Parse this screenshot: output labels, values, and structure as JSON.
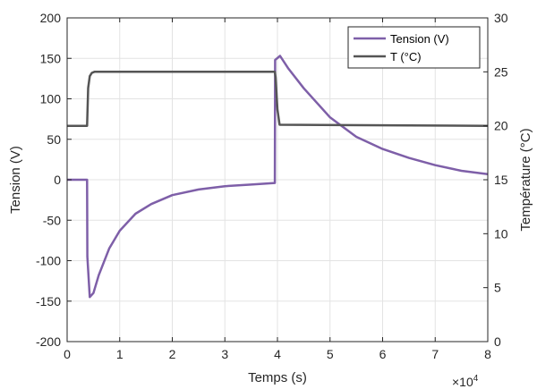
{
  "chart_data": {
    "type": "line",
    "xlabel": "Temps (s)",
    "x_exponent_label": "×10",
    "x_exponent_power": "4",
    "x_tick_multiplier": 10000,
    "xlim": [
      0,
      80000
    ],
    "x_ticks": [
      "0",
      "1",
      "2",
      "3",
      "4",
      "5",
      "6",
      "7",
      "8"
    ],
    "ylabel_left": "Tension (V)",
    "ylim_left": [
      -200,
      200
    ],
    "y_ticks_left": [
      "200",
      "150",
      "100",
      "50",
      "0",
      "-50",
      "-100",
      "-150",
      "-200"
    ],
    "ylabel_right": "Température (°C)",
    "ylim_right": [
      0,
      30
    ],
    "y_ticks_right": [
      "30",
      "25",
      "20",
      "15",
      "10",
      "5",
      "0"
    ],
    "grid": true,
    "legend_position": "top-right",
    "series": [
      {
        "name": "Tension (V)",
        "axis": "left",
        "color": "#7e5fa8",
        "x": [
          0,
          3800,
          3850,
          4300,
          5000,
          6000,
          8000,
          10000,
          13000,
          16000,
          20000,
          25000,
          30000,
          35000,
          39500,
          39550,
          40500,
          42000,
          45000,
          50000,
          55000,
          60000,
          65000,
          70000,
          75000,
          80000
        ],
        "y": [
          0,
          0,
          -95,
          -145,
          -140,
          -118,
          -85,
          -63,
          -42,
          -30,
          -19,
          -12,
          -8,
          -6,
          -4,
          148,
          153,
          138,
          113,
          77,
          53,
          38,
          27,
          18,
          11,
          7
        ]
      },
      {
        "name": "T (°C)",
        "axis": "right",
        "color": "#555555",
        "x": [
          0,
          3800,
          4000,
          4300,
          4700,
          5200,
          39500,
          39650,
          40000,
          40400,
          80000
        ],
        "y": [
          20,
          20,
          23.5,
          24.6,
          24.9,
          25,
          25,
          24.5,
          21.5,
          20.1,
          20
        ]
      }
    ]
  }
}
